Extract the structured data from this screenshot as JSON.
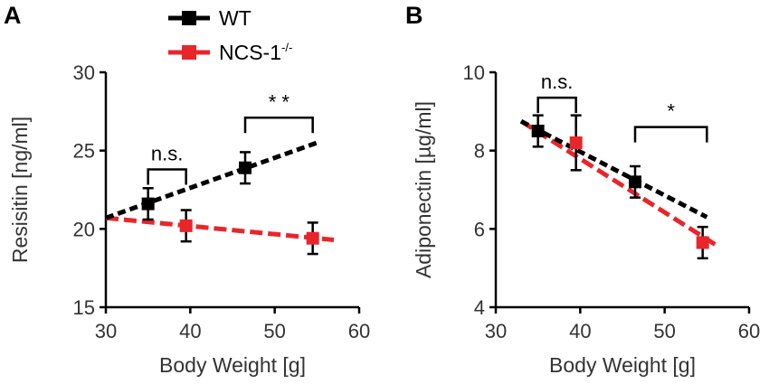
{
  "legend": {
    "items": [
      {
        "label": "WT",
        "color": "#000000"
      },
      {
        "label": "NCS-1",
        "superscript": "-/-",
        "color": "#e8262a"
      }
    ]
  },
  "chart_data": [
    {
      "type": "scatter",
      "panel": "A",
      "xlabel": "Body Weight [g]",
      "ylabel": "Resisitin [ng/ml]",
      "xlim": [
        30,
        60
      ],
      "ylim": [
        15,
        30
      ],
      "xticks": [
        30,
        40,
        50,
        60
      ],
      "yticks": [
        15,
        20,
        25,
        30
      ],
      "series": [
        {
          "name": "WT",
          "color": "#000000",
          "points": [
            {
              "x": 35,
              "y": 21.6,
              "err": 1.0
            },
            {
              "x": 46.5,
              "y": 23.9,
              "err": 1.0
            }
          ],
          "fit": [
            [
              30,
              20.7
            ],
            [
              55,
              25.5
            ]
          ]
        },
        {
          "name": "NCS-1-/-",
          "color": "#e8262a",
          "points": [
            {
              "x": 39.5,
              "y": 20.2,
              "err": 1.0
            },
            {
              "x": 54.5,
              "y": 19.4,
              "err": 1.0
            }
          ],
          "fit": [
            [
              30,
              20.7
            ],
            [
              57,
              19.3
            ]
          ]
        }
      ],
      "annotations": [
        {
          "text": "n.s.",
          "x1": 35,
          "x2": 39.5,
          "y": 23.8
        },
        {
          "text": "* *",
          "x1": 46.5,
          "x2": 54.5,
          "y": 27.1
        }
      ]
    },
    {
      "type": "scatter",
      "panel": "B",
      "xlabel": "Body Weight [g]",
      "ylabel": "Adiponectin [µg/ml]",
      "xlim": [
        30,
        60
      ],
      "ylim": [
        4,
        10
      ],
      "xticks": [
        30,
        40,
        50,
        60
      ],
      "yticks": [
        4,
        6,
        8,
        10
      ],
      "series": [
        {
          "name": "WT",
          "color": "#000000",
          "points": [
            {
              "x": 35,
              "y": 8.5,
              "err": 0.4
            },
            {
              "x": 46.5,
              "y": 7.2,
              "err": 0.4
            }
          ],
          "fit": [
            [
              33,
              8.75
            ],
            [
              55,
              6.3
            ]
          ]
        },
        {
          "name": "NCS-1-/-",
          "color": "#e8262a",
          "points": [
            {
              "x": 39.5,
              "y": 8.2,
              "err": 0.7
            },
            {
              "x": 54.5,
              "y": 5.65,
              "err": 0.4
            }
          ],
          "fit": [
            [
              33,
              8.75
            ],
            [
              56,
              5.6
            ]
          ]
        }
      ],
      "annotations": [
        {
          "text": "n.s.",
          "x1": 35,
          "x2": 39.5,
          "y": 9.35
        },
        {
          "text": "*",
          "x1": 46.5,
          "x2": 55,
          "y": 8.6
        }
      ]
    }
  ]
}
